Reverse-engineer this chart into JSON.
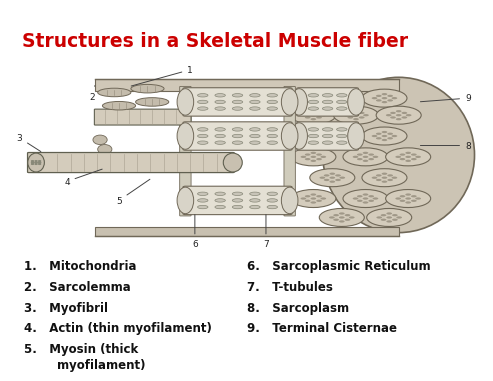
{
  "title": "Structures in a Skeletal Muscle fiber",
  "title_color": "#cc0000",
  "title_fontsize": 13.5,
  "bg_color": "#ffffff",
  "top_bar_color": "#3a7d3a",
  "label_fontsize": 8.5,
  "label_color": "#111111",
  "labels_left": [
    "1.   Mitochondria",
    "2.   Sarcolemma",
    "3.   Myofibril",
    "4.   Actin (thin myofilament)",
    "5.   Myosin (thick\n        myofilament)"
  ],
  "labels_right": [
    "6.   Sarcoplasmic Reticulum",
    "7.   T-tubules",
    "8.   Sarcoplasm",
    "9.   Terminal Cisternae"
  ],
  "diagram_bg": "#f0f0f0",
  "outer_color": "#c8c0b0",
  "myofibril_color": "#d8d0c0",
  "sr_color": "#e8e4dc",
  "mito_color": "#b8b0a0",
  "cross_section_color": "#c0b8a8",
  "honeycomb_color": "#c8c4b8"
}
